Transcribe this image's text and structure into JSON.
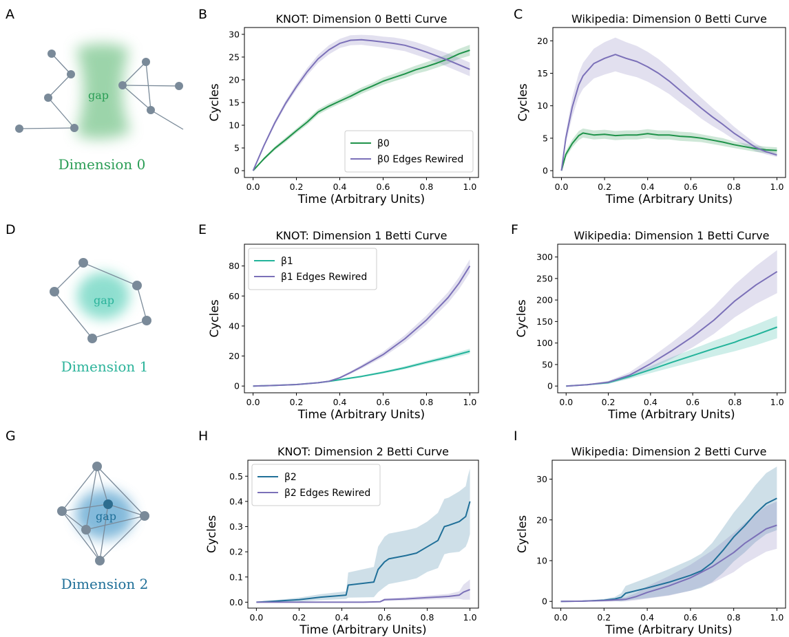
{
  "panel_letters": [
    "A",
    "B",
    "C",
    "D",
    "E",
    "F",
    "G",
    "H",
    "I"
  ],
  "diagrams": [
    {
      "caption": "Dimension 0",
      "gap_label": "gap",
      "color": "#2a9d55",
      "fill": "#7cc68e"
    },
    {
      "caption": "Dimension 1",
      "gap_label": "gap",
      "color": "#2bb39a",
      "fill": "#5ed1bb"
    },
    {
      "caption": "Dimension 2",
      "gap_label": "gap",
      "color": "#1f6f98",
      "fill": "#5aa3cf"
    }
  ],
  "colors": {
    "beta0": "#1e9249",
    "beta1": "#22b39a",
    "beta2": "#1f6f98",
    "rewired": "#7b70b8"
  },
  "chart_data": [
    {
      "id": "B",
      "type": "line",
      "title": "KNOT: Dimension 0 Betti Curve",
      "xlabel": "Time (Arbitrary Units)",
      "ylabel": "Cycles",
      "xlim": [
        -0.04,
        1.04
      ],
      "ylim": [
        -1.5,
        31.5
      ],
      "xticks": [
        0.0,
        0.2,
        0.4,
        0.6,
        0.8,
        1.0
      ],
      "yticks": [
        0,
        5,
        10,
        15,
        20,
        25,
        30
      ],
      "legend": "lower-right",
      "series": [
        {
          "name": "β0",
          "color_key": "beta0",
          "x": [
            0,
            0.05,
            0.1,
            0.15,
            0.2,
            0.25,
            0.3,
            0.35,
            0.4,
            0.45,
            0.5,
            0.55,
            0.6,
            0.65,
            0.7,
            0.75,
            0.8,
            0.85,
            0.9,
            0.95,
            1.0
          ],
          "y": [
            0,
            2.6,
            4.9,
            6.8,
            8.8,
            10.7,
            12.9,
            14.2,
            15.3,
            16.4,
            17.6,
            18.6,
            19.7,
            20.5,
            21.3,
            22.2,
            22.9,
            23.7,
            24.6,
            25.7,
            26.5
          ],
          "band": [
            0,
            0.3,
            0.4,
            0.5,
            0.5,
            0.6,
            0.6,
            0.6,
            0.6,
            0.7,
            0.7,
            0.7,
            0.8,
            0.8,
            0.9,
            0.9,
            1.0,
            1.0,
            1.1,
            1.1,
            1.2
          ]
        },
        {
          "name": "β0 Edges Rewired",
          "color_key": "rewired",
          "x": [
            0,
            0.05,
            0.1,
            0.15,
            0.2,
            0.25,
            0.3,
            0.35,
            0.4,
            0.45,
            0.5,
            0.55,
            0.6,
            0.65,
            0.7,
            0.75,
            0.8,
            0.85,
            0.9,
            0.95,
            1.0
          ],
          "y": [
            0,
            5.5,
            10.5,
            14.8,
            18.5,
            21.8,
            24.6,
            26.6,
            28.0,
            28.7,
            28.8,
            28.6,
            28.3,
            28.0,
            27.6,
            26.9,
            26.1,
            25.2,
            24.3,
            23.3,
            22.3
          ],
          "band": [
            0,
            0.3,
            0.5,
            0.6,
            0.7,
            0.8,
            0.9,
            1.0,
            1.0,
            1.1,
            1.1,
            1.2,
            1.2,
            1.3,
            1.3,
            1.4,
            1.4,
            1.4,
            1.5,
            1.5,
            1.5
          ]
        }
      ]
    },
    {
      "id": "C",
      "type": "line",
      "title": "Wikipedia: Dimension 0 Betti Curve",
      "xlabel": "Time (Arbitrary Units)",
      "ylabel": "Cycles",
      "xlim": [
        -0.04,
        1.04
      ],
      "ylim": [
        -1.05,
        22.05
      ],
      "xticks": [
        0.0,
        0.2,
        0.4,
        0.6,
        0.8,
        1.0
      ],
      "yticks": [
        0,
        5,
        10,
        15,
        20
      ],
      "legend": "none",
      "series": [
        {
          "name": "",
          "color_key": "beta0",
          "x": [
            0,
            0.02,
            0.05,
            0.08,
            0.1,
            0.15,
            0.2,
            0.25,
            0.3,
            0.35,
            0.4,
            0.45,
            0.5,
            0.55,
            0.6,
            0.65,
            0.7,
            0.75,
            0.8,
            0.85,
            0.9,
            0.95,
            1.0
          ],
          "y": [
            0,
            2.5,
            4.2,
            5.4,
            5.8,
            5.5,
            5.6,
            5.4,
            5.5,
            5.5,
            5.7,
            5.5,
            5.5,
            5.3,
            5.2,
            5.0,
            4.7,
            4.4,
            4.0,
            3.7,
            3.4,
            3.2,
            3.1
          ],
          "band": [
            0,
            0.5,
            0.6,
            0.7,
            0.7,
            0.7,
            0.7,
            0.7,
            0.7,
            0.7,
            0.7,
            0.7,
            0.7,
            0.7,
            0.7,
            0.6,
            0.6,
            0.6,
            0.5,
            0.5,
            0.5,
            0.5,
            0.5
          ]
        },
        {
          "name": "",
          "color_key": "rewired",
          "x": [
            0,
            0.02,
            0.05,
            0.08,
            0.1,
            0.15,
            0.2,
            0.25,
            0.3,
            0.35,
            0.4,
            0.45,
            0.5,
            0.55,
            0.6,
            0.65,
            0.7,
            0.75,
            0.8,
            0.85,
            0.9,
            0.95,
            1.0
          ],
          "y": [
            0,
            5.0,
            9.8,
            13.2,
            14.6,
            16.5,
            17.3,
            17.9,
            17.3,
            16.8,
            16.0,
            15.0,
            13.8,
            12.4,
            11.0,
            9.6,
            8.3,
            7.1,
            5.8,
            4.7,
            3.6,
            2.9,
            2.4
          ],
          "band": [
            0,
            0.8,
            1.5,
            1.8,
            2.0,
            2.3,
            2.5,
            2.6,
            2.5,
            2.4,
            2.3,
            2.2,
            2.0,
            1.9,
            1.7,
            1.6,
            1.4,
            1.2,
            1.0,
            0.8,
            0.6,
            0.4,
            0.3
          ]
        }
      ]
    },
    {
      "id": "E",
      "type": "line",
      "title": "KNOT: Dimension 1 Betti Curve",
      "xlabel": "Time (Arbitrary Units)",
      "ylabel": "Cycles",
      "xlim": [
        -0.04,
        1.04
      ],
      "ylim": [
        -4.5,
        94.5
      ],
      "xticks": [
        0.0,
        0.2,
        0.4,
        0.6,
        0.8,
        1.0
      ],
      "yticks": [
        0,
        20,
        40,
        60,
        80
      ],
      "legend": "upper-left",
      "series": [
        {
          "name": "β1",
          "color_key": "beta1",
          "x": [
            0,
            0.1,
            0.2,
            0.3,
            0.35,
            0.4,
            0.5,
            0.6,
            0.7,
            0.8,
            0.9,
            1.0
          ],
          "y": [
            0,
            0.4,
            1.0,
            2.2,
            3.1,
            4.2,
            6.4,
            9.1,
            12.2,
            15.8,
            19.3,
            23.2
          ],
          "band": [
            0,
            0.1,
            0.2,
            0.3,
            0.4,
            0.5,
            0.6,
            0.8,
            1.0,
            1.2,
            1.4,
            1.7
          ]
        },
        {
          "name": "β1 Edges Rewired",
          "color_key": "rewired",
          "x": [
            0,
            0.1,
            0.2,
            0.3,
            0.35,
            0.4,
            0.45,
            0.5,
            0.6,
            0.7,
            0.8,
            0.9,
            0.95,
            1.0
          ],
          "y": [
            0,
            0.4,
            1.0,
            2.2,
            3.2,
            5.5,
            9.0,
            12.8,
            21.0,
            31.5,
            44.0,
            59.0,
            68.5,
            80.0
          ],
          "band": [
            0,
            0.1,
            0.2,
            0.3,
            0.4,
            0.6,
            0.9,
            1.2,
            1.8,
            2.4,
            3.0,
            3.6,
            4.0,
            4.4
          ]
        }
      ]
    },
    {
      "id": "F",
      "type": "line",
      "title": "Wikipedia: Dimension 1 Betti Curve",
      "xlabel": "Time (Arbitrary Units)",
      "ylabel": "Cycles",
      "xlim": [
        -0.04,
        1.04
      ],
      "ylim": [
        -15.7,
        329.7
      ],
      "xticks": [
        0.0,
        0.2,
        0.4,
        0.6,
        0.8,
        1.0
      ],
      "yticks": [
        0,
        50,
        100,
        150,
        200,
        250,
        300
      ],
      "legend": "none",
      "series": [
        {
          "name": "",
          "color_key": "beta1",
          "x": [
            0,
            0.1,
            0.2,
            0.3,
            0.4,
            0.5,
            0.6,
            0.7,
            0.8,
            0.82,
            0.9,
            1.0
          ],
          "y": [
            0,
            3,
            8,
            22,
            38,
            55,
            71,
            87,
            102,
            106,
            119,
            137
          ],
          "band": [
            0,
            1,
            3,
            5,
            8,
            12,
            15,
            18,
            21,
            22,
            24,
            26
          ]
        },
        {
          "name": "",
          "color_key": "rewired",
          "x": [
            0,
            0.1,
            0.2,
            0.3,
            0.4,
            0.5,
            0.6,
            0.7,
            0.8,
            0.9,
            1.0
          ],
          "y": [
            0,
            3,
            9,
            25,
            52,
            82,
            115,
            153,
            198,
            235,
            266
          ],
          "band": [
            0,
            1,
            3,
            7,
            13,
            19,
            25,
            32,
            38,
            44,
            50
          ]
        }
      ]
    },
    {
      "id": "H",
      "type": "line",
      "title": "KNOT: Dimension 2 Betti Curve",
      "xlabel": "Time (Arbitrary Units)",
      "ylabel": "Cycles",
      "xlim": [
        -0.04,
        1.04
      ],
      "ylim": [
        -0.0235,
        0.5635
      ],
      "xticks": [
        0.0,
        0.2,
        0.4,
        0.6,
        0.8,
        1.0
      ],
      "yticks": [
        0.0,
        0.1,
        0.2,
        0.3,
        0.4,
        0.5
      ],
      "legend": "upper-left",
      "series": [
        {
          "name": "β2",
          "color_key": "beta2",
          "x": [
            0,
            0.1,
            0.2,
            0.3,
            0.42,
            0.43,
            0.55,
            0.57,
            0.6,
            0.62,
            0.7,
            0.75,
            0.8,
            0.85,
            0.88,
            0.9,
            0.95,
            0.98,
            0.99,
            1.0
          ],
          "y": [
            0,
            0.005,
            0.01,
            0.02,
            0.028,
            0.068,
            0.08,
            0.13,
            0.16,
            0.172,
            0.185,
            0.195,
            0.22,
            0.245,
            0.3,
            0.305,
            0.32,
            0.34,
            0.37,
            0.4
          ],
          "band": [
            0,
            0.004,
            0.008,
            0.012,
            0.015,
            0.05,
            0.06,
            0.09,
            0.1,
            0.1,
            0.1,
            0.1,
            0.1,
            0.11,
            0.11,
            0.11,
            0.12,
            0.12,
            0.13,
            0.13
          ]
        },
        {
          "name": "β2 Edges Rewired",
          "color_key": "rewired",
          "x": [
            0,
            0.1,
            0.2,
            0.3,
            0.4,
            0.5,
            0.58,
            0.6,
            0.7,
            0.8,
            0.9,
            0.95,
            0.97,
            1.0
          ],
          "y": [
            0,
            0,
            0,
            0,
            0,
            0,
            0.002,
            0.01,
            0.013,
            0.018,
            0.023,
            0.028,
            0.04,
            0.05
          ],
          "band": [
            0,
            0,
            0,
            0,
            0,
            0,
            0.002,
            0.005,
            0.006,
            0.008,
            0.01,
            0.015,
            0.03,
            0.04
          ]
        }
      ]
    },
    {
      "id": "I",
      "type": "line",
      "title": "Wikipedia: Dimension 2 Betti Curve",
      "xlabel": "Time (Arbitrary Units)",
      "ylabel": "Cycles",
      "xlim": [
        -0.04,
        1.04
      ],
      "ylim": [
        -1.65,
        34.65
      ],
      "xticks": [
        0.0,
        0.2,
        0.4,
        0.6,
        0.8,
        1.0
      ],
      "yticks": [
        0,
        10,
        20,
        30
      ],
      "legend": "none",
      "series": [
        {
          "name": "",
          "color_key": "beta2",
          "x": [
            0,
            0.1,
            0.2,
            0.25,
            0.28,
            0.3,
            0.4,
            0.5,
            0.6,
            0.65,
            0.7,
            0.75,
            0.8,
            0.85,
            0.9,
            0.95,
            1.0
          ],
          "y": [
            0,
            0.05,
            0.3,
            0.6,
            1.0,
            2.0,
            3.3,
            4.7,
            6.4,
            7.5,
            9.5,
            12.5,
            15.8,
            18.5,
            21.5,
            24.0,
            25.3
          ],
          "band": [
            0,
            0.05,
            0.3,
            0.5,
            1.0,
            1.8,
            2.5,
            3.2,
            3.8,
            4.2,
            4.8,
            5.5,
            6.0,
            6.5,
            7.0,
            7.5,
            7.8
          ]
        },
        {
          "name": "",
          "color_key": "rewired",
          "x": [
            0,
            0.1,
            0.2,
            0.3,
            0.35,
            0.4,
            0.5,
            0.6,
            0.7,
            0.8,
            0.85,
            0.9,
            0.95,
            1.0
          ],
          "y": [
            0,
            0.05,
            0.2,
            0.5,
            1.2,
            2.2,
            3.8,
            5.8,
            8.5,
            12.0,
            14.2,
            16.0,
            17.8,
            18.7
          ],
          "band": [
            0,
            0.05,
            0.2,
            0.5,
            0.9,
            1.5,
            2.4,
            3.2,
            4.0,
            4.8,
            5.0,
            5.3,
            5.6,
            5.8
          ]
        }
      ]
    }
  ]
}
